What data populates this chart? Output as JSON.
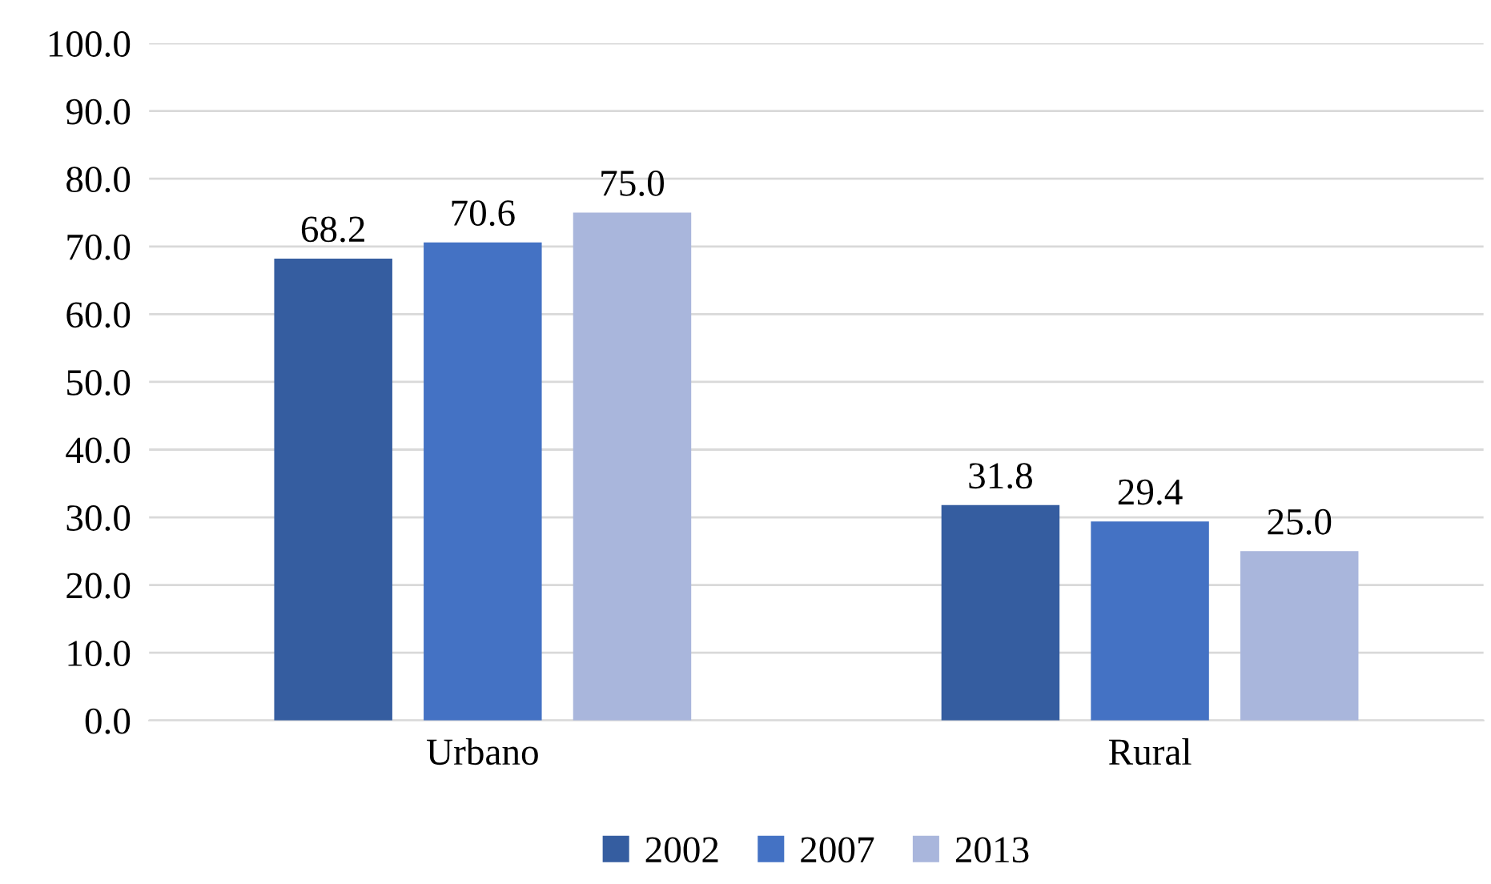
{
  "chart_data": {
    "type": "bar",
    "categories": [
      "Urbano",
      "Rural"
    ],
    "series": [
      {
        "name": "2002",
        "color": "#355da0",
        "values": [
          68.2,
          31.8
        ],
        "value_labels": [
          "68.2",
          "31.8"
        ]
      },
      {
        "name": "2007",
        "color": "#4472c4",
        "values": [
          70.6,
          29.4
        ],
        "value_labels": [
          "70.6",
          "29.4"
        ]
      },
      {
        "name": "2013",
        "color": "#a9b6dc",
        "values": [
          75.0,
          25.0
        ],
        "value_labels": [
          "75.0",
          "25.0"
        ]
      }
    ],
    "ylim": [
      0,
      100
    ],
    "yticks": [
      {
        "value": 0,
        "label": "0.0"
      },
      {
        "value": 10,
        "label": "10.0"
      },
      {
        "value": 20,
        "label": "20.0"
      },
      {
        "value": 30,
        "label": "30.0"
      },
      {
        "value": 40,
        "label": "40.0"
      },
      {
        "value": 50,
        "label": "50.0"
      },
      {
        "value": 60,
        "label": "60.0"
      },
      {
        "value": 70,
        "label": "70.0"
      },
      {
        "value": 80,
        "label": "80.0"
      },
      {
        "value": 90,
        "label": "90.0"
      },
      {
        "value": 100,
        "label": "100.0"
      }
    ],
    "grid": "y",
    "legend": "bottom"
  }
}
